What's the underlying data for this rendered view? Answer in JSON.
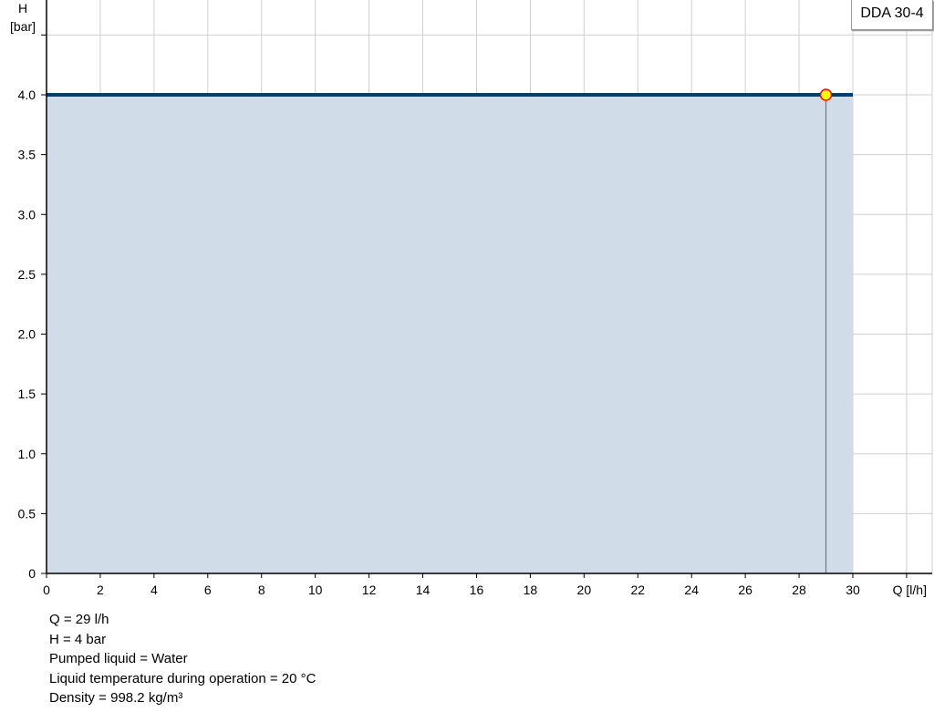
{
  "chart_data": {
    "type": "area",
    "ylabel_line1": "H",
    "ylabel_line2": "[bar]",
    "xlabel": "Q [l/h]",
    "xlim": [
      0,
      31
    ],
    "ylim": [
      0,
      4.8
    ],
    "xticks": [
      0,
      2,
      4,
      6,
      8,
      10,
      12,
      14,
      16,
      18,
      20,
      22,
      24,
      26,
      28,
      30
    ],
    "xtick_labels": [
      "0",
      "2",
      "4",
      "6",
      "8",
      "10",
      "12",
      "14",
      "16",
      "18",
      "20",
      "22",
      "24",
      "26",
      "28",
      "30"
    ],
    "extra_xgrid": [
      32
    ],
    "yticks": [
      0,
      0.5,
      1.0,
      1.5,
      2.0,
      2.5,
      3.0,
      3.5,
      4.0
    ],
    "ytick_labels": [
      "0",
      "0.5",
      "1.0",
      "1.5",
      "2.0",
      "2.5",
      "3.0",
      "3.5",
      "4.0"
    ],
    "extra_ygrid": [
      4.5
    ],
    "grid": true,
    "series": [
      {
        "name": "DDA 30-4",
        "x": [
          0,
          30
        ],
        "y": [
          4,
          4
        ]
      }
    ],
    "operating_point": {
      "x": 29,
      "y": 4
    },
    "legend": "top-right",
    "colors": {
      "line": "#004070",
      "fill": "#d0dce8",
      "point_fill": "#ffff00",
      "point_stroke": "#ff0000",
      "grid": "#d0d0d0"
    }
  },
  "info": [
    "Q = 29 l/h",
    "H = 4 bar",
    "Pumped liquid = Water",
    "Liquid temperature during operation = 20 °C",
    "Density = 998.2 kg/m³"
  ]
}
